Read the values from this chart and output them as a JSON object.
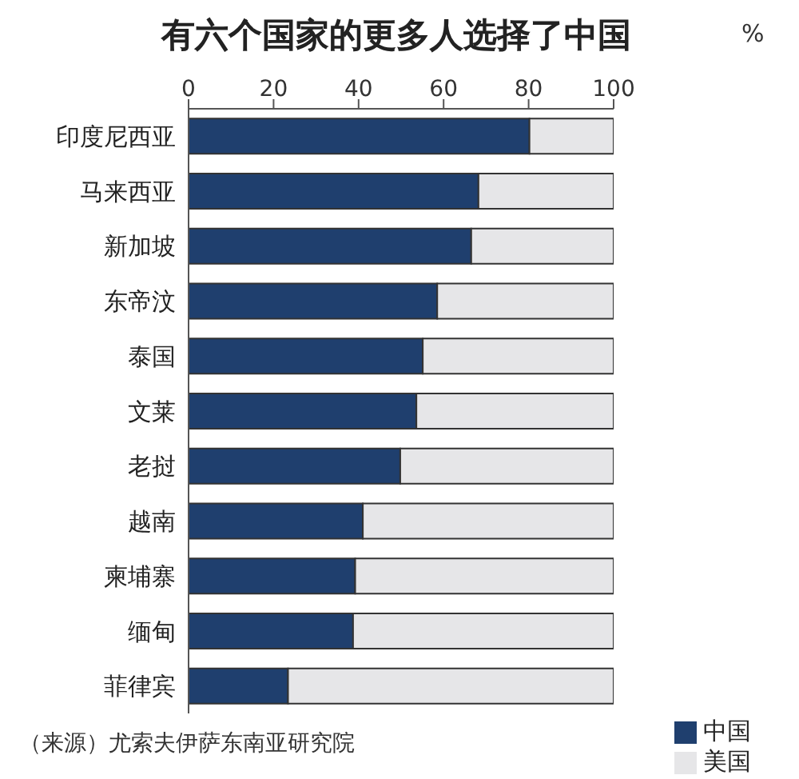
{
  "chart_data": {
    "type": "bar",
    "orientation": "horizontal",
    "stacked": true,
    "title": "有六个国家的更多人选择了中国",
    "xlabel": "%",
    "categories": [
      "印度尼西亚",
      "马来西亚",
      "新加坡",
      "东帝汶",
      "泰国",
      "文莱",
      "老挝",
      "越南",
      "柬埔寨",
      "缅甸",
      "菲律宾"
    ],
    "series": [
      {
        "name": "中国",
        "color": "#1f3f6e",
        "values": [
          80.2,
          68.2,
          66.5,
          58.5,
          55.1,
          53.6,
          49.8,
          41.0,
          39.2,
          38.7,
          23.4
        ]
      },
      {
        "name": "美国",
        "color": "#e6e6e8",
        "values": [
          19.8,
          31.8,
          33.5,
          41.5,
          44.9,
          46.4,
          50.2,
          59.0,
          60.8,
          61.3,
          76.6
        ]
      }
    ],
    "xlim": [
      0,
      100
    ],
    "xticks": [
      0,
      20,
      40,
      60,
      80,
      100
    ],
    "grid": false,
    "legend": "bottom right",
    "annotations": [
      "（来源）尤索夫伊萨东南亚研究院"
    ]
  }
}
